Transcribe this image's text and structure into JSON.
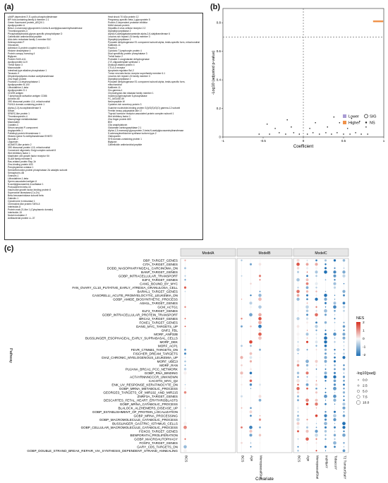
{
  "panels": {
    "a": "(a)",
    "b": "(b)",
    "c": "(c)"
  },
  "panel_a": {
    "left_column": [
      "cAMP-dependent 3',5'-cyclic phosphodiesterase",
      "BPI fold-containing family A member 2.1",
      "Green fluorescent protein_AEQVI.1",
      "Apolipoprotein A",
      "Beta-1,4-mannosyl-glycoprotein 4-beta-N-acetylglucosaminyltransferase",
      "Thrombospondin-4",
      "Phosphatidylinositol-glycan-specific phospholipase D",
      "Cathelicidin antimicrobial peptide",
      "Aldo-keto reductase family 1 member B10",
      "Selenoprotein P",
      "Vitronectin",
      "Adhesion G-protein coupled receptor G1",
      "Histone deacetylase 4",
      "Protein canopy homolog 4",
      "Biglycan",
      "Protein S100-A11",
      "Apolipoprotein A-IV",
      "Trefoil factor 3",
      "Macroscialin",
      "Intestinal-type alkaline phosphatase 1",
      "Tenascin-X",
      "Dihydrolipoyllysine-residue acetyltransferase",
      "Zinc finger protein",
      "Fructose-1,6-bisphosphatase 1",
      "Apolipoprotein B-100",
      "Lithostathine-1-beta",
      "Apolipoprotein D.1",
      "CD209 antigen",
      "T-lymphocyte activation antigen CD86",
      "Annexin A6",
      "39S ribosomal protein L14, mitochondrial",
      "FUN14 domain-containing protein 1",
      "Alpha-(1,3)-fucosyltransferase 5",
      "Sirtuin",
      "SPARC-like protein 1",
      "Thrombospondin-4",
      "Macrophage metalloelastase",
      "Macrosialin",
      "Cystatin-C",
      "Serum amyloid P-component",
      "Angiopoietin-1",
      "Palmitoyl-protein thioesterase 1",
      "Histone-lysine N-methyltransferase EHMT2",
      "Spondin-2",
      "Legumain",
      "ADAMTS-like protein 2",
      "39S ribosomal protein L15, mitochondrial",
      "Conserved oligomeric Golgi complex subunit 8",
      "Wnt inhibitory factor 1",
      "Mast/stem cell growth factor receptor Kit",
      "SLAM family member 5",
      "Ras-related protein Rap-1b",
      "Zinc-binding protein A33",
      "Prenylcysteine oxidase 1",
      "Serine/threonine-protein phosphatase 2A catalytic subunit",
      "Semaphorin-4B",
      "Granulin-1",
      "Lithostathine-1-beta",
      "Sperm-associated antigen 6",
      "N-acetylglucosamine-6-sulfatase 1",
      "Protocadherin beta-16",
      "Insulin-like growth factor-binding protein 6",
      "Superoxide dismutase [Cu-Zn]",
      "Beta-hexosaminidase subunit beta",
      "Galectin-1",
      "Cytochrome b reductase 1",
      "Chemokine-like protein TAFA-5",
      "Interleukin-8",
      "Protein mab-21-like 1 (Cytoplasmic domain)",
      "Interleukin-15",
      "Nodal modulator 2",
      "Antibacterial protein LL-37"
    ],
    "right_column": [
      "Heat shock 70 kDa protein 12",
      "Pregnancy-specific beta-1-glycoprotein 5",
      "Protein Z-dependent protease inhibitor",
      "MAM domain protein",
      "Hepatitis A virus cellular receptor 2.2",
      "Dipeptidyl peptidase 2",
      "Alpha-N-acetylgalactosaminide alpha-2,6-sialyltransferase 6",
      "Leucine-rich repeat LGI family member 3",
      "Dipeptidyl peptidase 2",
      "Pyruvate dehydrogenase E1 component subunit alpha, testis-specific form, mitochondrial",
      "Kallikrein-11",
      "Ficolin-3",
      "Cytotoxic T-lymphocyte protein 4",
      "Dual specificity protein phosphatase 3",
      "Trefoil factor 2",
      "Probable 2-oxoglutarate dehydrogenase",
      "2'-5'-oligoadenylate synthase 1",
      "Dickkopf-related protein 4",
      "CTLA-4 receptor",
      "Apoptosis regulator Bcl-2",
      "Tumor necrosis factor receptor superfamily member 6.1",
      "Leucine-rich repeat LGI family member 3",
      "Dipeptidyl peptidase 2",
      "Pyruvate dehydrogenase E1 component subunit alpha, testis-specific form,",
      "mitochondrial",
      "Kallikrein-11",
      "Gro-gamma-1",
      "Chymotrypsin-like elastase family member 1",
      "Inositol polyphosphate 5-phosphatase",
      "FC_MOUSE.59",
      "Neuropeptide W",
      "Cysteine-rich secretory protein 3",
      "Guanine nucleotide-binding protein G(I)/G(S)/G(O) gamma-12 subunit",
      "Ferritin heavy polypeptide-like 17",
      "Thyroid hormone receptor-associated protein complex subunit 1",
      "Wnt inhibitory factor 1",
      "Zinc finger protein 683",
      "BNI",
      "C5a anaphylatoxin",
      "Glutamate carboxypeptidase 2.1",
      "Alpha-1,3-mannosyl-glycoprotein 2-beta-N-acetylglucosaminyltransferase",
      "S-adenosylmethionine synthase isoform type-2",
      "Osteopontin",
      "SH3 domain-containing protein 1",
      "Biglycan",
      "Cathelicidin antimicrobial peptide"
    ]
  },
  "panel_b": {
    "chart_data": {
      "type": "scatter",
      "title": "",
      "xlabel": "Coefficient",
      "ylabel": "-Log10 (adjusted p-value)",
      "xlim": [
        -1,
        1
      ],
      "ylim": [
        0,
        0.9
      ],
      "xticks": [
        "-1",
        "-0.5",
        "0",
        "0.5",
        "1"
      ],
      "yticks": [
        "0",
        "0.2",
        "0.4",
        "0.6",
        "0.8"
      ],
      "threshold_y": 0.7,
      "vline_x": 0,
      "legend_placement": "bottom-right",
      "legend": {
        "lower": "Lower",
        "higher": "Higher",
        "sig": "SIG",
        "ns": "NS"
      },
      "colors": {
        "lower": "#a99bd4",
        "higher": "#f0924a"
      },
      "points_sig": [
        {
          "x": 0.88,
          "y": 0.81
        },
        {
          "x": 0.9,
          "y": 0.81
        },
        {
          "x": 0.92,
          "y": 0.81
        },
        {
          "x": 0.94,
          "y": 0.81
        },
        {
          "x": 0.96,
          "y": 0.81
        },
        {
          "x": 0.98,
          "y": 0.81
        }
      ],
      "points_ns": [
        {
          "x": -0.55,
          "y": 0.02
        },
        {
          "x": -0.42,
          "y": 0.02
        },
        {
          "x": -0.3,
          "y": 0.03
        },
        {
          "x": -0.22,
          "y": 0.02
        },
        {
          "x": -0.12,
          "y": 0.03
        },
        {
          "x": -0.05,
          "y": 0.02
        },
        {
          "x": 0.05,
          "y": 0.02
        },
        {
          "x": 0.12,
          "y": 0.03
        },
        {
          "x": 0.2,
          "y": 0.02
        },
        {
          "x": 0.28,
          "y": 0.03
        },
        {
          "x": 0.35,
          "y": 0.02
        },
        {
          "x": 0.42,
          "y": 0.03
        },
        {
          "x": 0.5,
          "y": 0.02
        },
        {
          "x": 0.58,
          "y": 0.02
        },
        {
          "x": 0.65,
          "y": 0.03
        },
        {
          "x": 0.72,
          "y": 0.02
        },
        {
          "x": 0.8,
          "y": 0.02
        },
        {
          "x": -0.35,
          "y": 0.06
        },
        {
          "x": -0.15,
          "y": 0.07
        },
        {
          "x": 0.08,
          "y": 0.06
        },
        {
          "x": 0.3,
          "y": 0.07
        },
        {
          "x": 0.55,
          "y": 0.06
        },
        {
          "x": 0.78,
          "y": 0.07
        },
        {
          "x": -0.45,
          "y": 0.09
        },
        {
          "x": 0.15,
          "y": 0.1
        },
        {
          "x": 0.45,
          "y": 0.1
        },
        {
          "x": 0.7,
          "y": 0.11
        },
        {
          "x": -0.2,
          "y": 0.12
        },
        {
          "x": 0.6,
          "y": 0.13
        },
        {
          "x": 0.38,
          "y": 0.14
        }
      ]
    }
  },
  "panel_c": {
    "chart_data": {
      "type": "scatter",
      "title": "",
      "xlabel": "Covariate",
      "ylabel": "Pathway",
      "panels": [
        "ModelA",
        "ModelB",
        "ModelC"
      ],
      "covariates": {
        "ModelA": [
          "BCS"
        ],
        "ModelB": [
          "BCS",
          "Age",
          "MenopausalStat"
        ],
        "ModelC": [
          "BCS",
          "Age",
          "MenopausalStat",
          "IndHbAY",
          "TobaccoY",
          "T2 TumourStatY"
        ]
      },
      "pathways": [
        "DBP_TARGET_GENES",
        "CITA_TARGET_GENES",
        "DODD_NASOPHARYNGEAL_CARCINOMA_DN",
        "BANP_TARGET_GENES",
        "GOBP_INTRACELLULAR_TRANSPORT",
        "E2F3_TARGET_GENES",
        "CANG_BOUND_BY_MYC",
        "FAN_OVARY_CL10_PUTATIVE_EARLY_ATRESIA_GRANULOSA_CELL",
        "BARHL1_TARGET_GENES",
        "CASORELLI_ACUTE_PROMYELOCYTIC_LEUKEMIA_DN",
        "GOBP_AMIDE_BIOSYNTHETIC_PROCESS",
        "ASH1L_TARGET_GENES",
        "GCM_ACTG1",
        "ELF2_TARGET_GENES",
        "GOBP_INTRACELLULAR_PROTEIN_TRANSPORT",
        "BRCA2_TARGET_GENES",
        "FOXE1_TARGET_GENES",
        "DANG_MYC_TARGETS_UP",
        "GNF2_FBL",
        "MORF_ANP32B",
        "BUSSLINGER_ESOPHAGEAL_EARLY_SUPRABASAL_CELLS",
        "MORF_DEK",
        "MORF_ACP1",
        "FEVR_CTNNB1_TARGETS_DN",
        "FISCHER_DREAM_TARGETS",
        "DIAZ_CHRONIC_MYELOGENOUS_LEUKEMIA_UP",
        "MORF_UBE2I",
        "MORF_RAN",
        "PUJANA_BRCA1_PCC_NETWORK",
        "GOBP_RNA_BINDING",
        "ACTAYRNNNCCCR_UNKNOWN",
        "CACOTG_MYC_Q2",
        "ENK_UV_RESPONSE_KERATINOCYTE_DN",
        "GOBP_MRNA_METABOLIC_PROCESS",
        "GEORGES_TARGETS_OF_MIR192_AND_MIR215",
        "ZNRF3A_TARGET_GENES",
        "DESCARTES_FETAL_HEART_ERYTHROBLASTS",
        "GOBP_MRNA_CATABOLIC_PROCESS",
        "BLALOCK_ALZHEIMERS_DISEASE_UP",
        "GOBP_ESTABLISHMENT_OF_PROTEIN_LOCALIZATION",
        "GOBP_MRNA_PROCESSING",
        "GOBP_MACROMOLECULE_CATABOLIC_PROCESS",
        "BUSSLINGER_GASTRIC_ISTHMUS_CELLS",
        "GOBP_CELLULAR_MACROMOLECULE_CATABOLIC_PROCESS",
        "FOXO3_TARGET_GENES",
        "BENPORATH_PROLIFERATION",
        "GOBP_MACROAUTOPHAGY",
        "FOXP2_TARGET_GENES",
        "GARY_CD5_TARGETS_DN",
        "GOBP_DOUBLE_STRAND_BREAK_REPAIR_VIA_SYNTHESIS_DEPENDENT_STRAND_ANNEALING"
      ],
      "legend_placement": "right",
      "color_legend": {
        "title": "NES",
        "ticks": [
          "2",
          "1",
          "0",
          "-1",
          "-2"
        ],
        "high": "#d7301f",
        "mid": "#f7f7f7",
        "low": "#2171b5"
      },
      "size_legend": {
        "title": "-log10(padj)",
        "ticks": [
          "0.0",
          "2.5",
          "5.0",
          "7.5",
          "10.0"
        ]
      }
    }
  }
}
